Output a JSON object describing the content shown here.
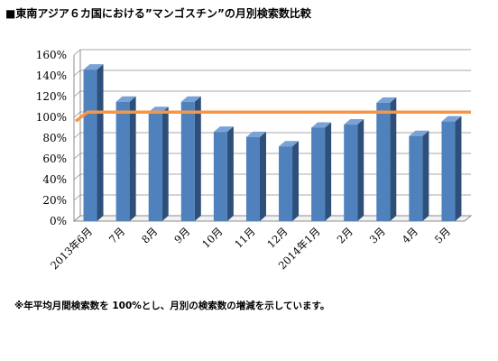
{
  "title": "■東南アジア６カ国における”マンゴスチン”の月別検索数比較",
  "note": "※年平均月間検索数を 100%とし、月別の検索数の増減を示しています。",
  "chart_data": {
    "type": "bar",
    "categories": [
      "2013年6月",
      "7月",
      "8月",
      "9月",
      "10月",
      "11月",
      "12月",
      "2014年1月",
      "2月",
      "3月",
      "4月",
      "5月"
    ],
    "values": [
      146,
      115,
      105,
      115,
      86,
      81,
      72,
      90,
      93,
      114,
      82,
      96
    ],
    "baseline": 105,
    "ylim": [
      0,
      160
    ],
    "yticks": [
      0,
      20,
      40,
      60,
      80,
      100,
      120,
      140,
      160
    ],
    "ytick_labels": [
      "0%",
      "20%",
      "40%",
      "60%",
      "80%",
      "100%",
      "120%",
      "140%",
      "160%"
    ],
    "grid": true,
    "colors": {
      "bar": "#4f81bd",
      "bar_side": "#2d4f7a",
      "bar_top": "#7aa2d6",
      "baseline": "#f79646",
      "grid": "#8c8c8c"
    }
  }
}
